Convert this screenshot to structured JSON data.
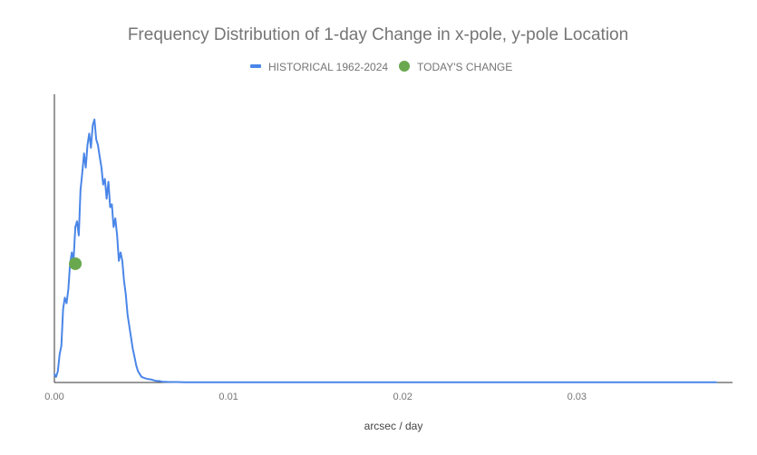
{
  "chart_data": {
    "type": "line",
    "title": "Frequency Distribution of 1-day Change in x-pole, y-pole Location",
    "xlabel": "arcsec / day",
    "ylabel": "",
    "xlim": [
      0,
      0.038
    ],
    "ylim": [
      0,
      100
    ],
    "x_ticks": [
      {
        "value": 0,
        "label": "0.00"
      },
      {
        "value": 0.01,
        "label": "0.01"
      },
      {
        "value": 0.02,
        "label": "0.02"
      },
      {
        "value": 0.03,
        "label": "0.03"
      }
    ],
    "legend_position": "top-center",
    "series": [
      {
        "name": "HISTORICAL 1962-2024",
        "color": "#4a86e8",
        "x": [
          0.0,
          0.0001,
          0.0002,
          0.0003,
          0.0004,
          0.0005,
          0.0006,
          0.0007,
          0.0008,
          0.0009,
          0.001,
          0.0011,
          0.0012,
          0.0013,
          0.0014,
          0.0015,
          0.0016,
          0.0017,
          0.0018,
          0.0019,
          0.002,
          0.0021,
          0.0022,
          0.0023,
          0.0024,
          0.0025,
          0.0026,
          0.0027,
          0.0028,
          0.0029,
          0.003,
          0.0031,
          0.0032,
          0.0033,
          0.0034,
          0.0035,
          0.0036,
          0.0037,
          0.0038,
          0.0039,
          0.004,
          0.0041,
          0.0042,
          0.0043,
          0.0044,
          0.0045,
          0.0046,
          0.0047,
          0.0048,
          0.0049,
          0.005,
          0.0052,
          0.0054,
          0.0056,
          0.0058,
          0.006,
          0.0062,
          0.0065,
          0.007,
          0.0075,
          0.008,
          0.009,
          0.01,
          0.012,
          0.015,
          0.02,
          0.025,
          0.03,
          0.035,
          0.038
        ],
        "y": [
          3,
          2,
          4,
          10,
          13,
          26,
          30,
          28,
          33,
          42,
          46,
          43,
          55,
          57,
          52,
          68,
          74,
          81,
          76,
          84,
          88,
          83,
          91,
          93,
          86,
          84,
          80,
          76,
          70,
          72,
          65,
          71,
          62,
          63,
          55,
          58,
          52,
          43,
          46,
          43,
          36,
          31,
          24,
          20,
          16,
          12,
          9,
          6,
          4,
          3,
          2,
          1.5,
          1.2,
          1,
          0.6,
          0.5,
          0.3,
          0.2,
          0.15,
          0.1,
          0.1,
          0.1,
          0.1,
          0.05,
          0.05,
          0.05,
          0.05,
          0.05,
          0.05,
          0.05
        ]
      },
      {
        "name": "TODAY'S CHANGE",
        "color": "#6aa84f",
        "x": [
          0.0012
        ],
        "y": [
          42
        ]
      }
    ]
  }
}
